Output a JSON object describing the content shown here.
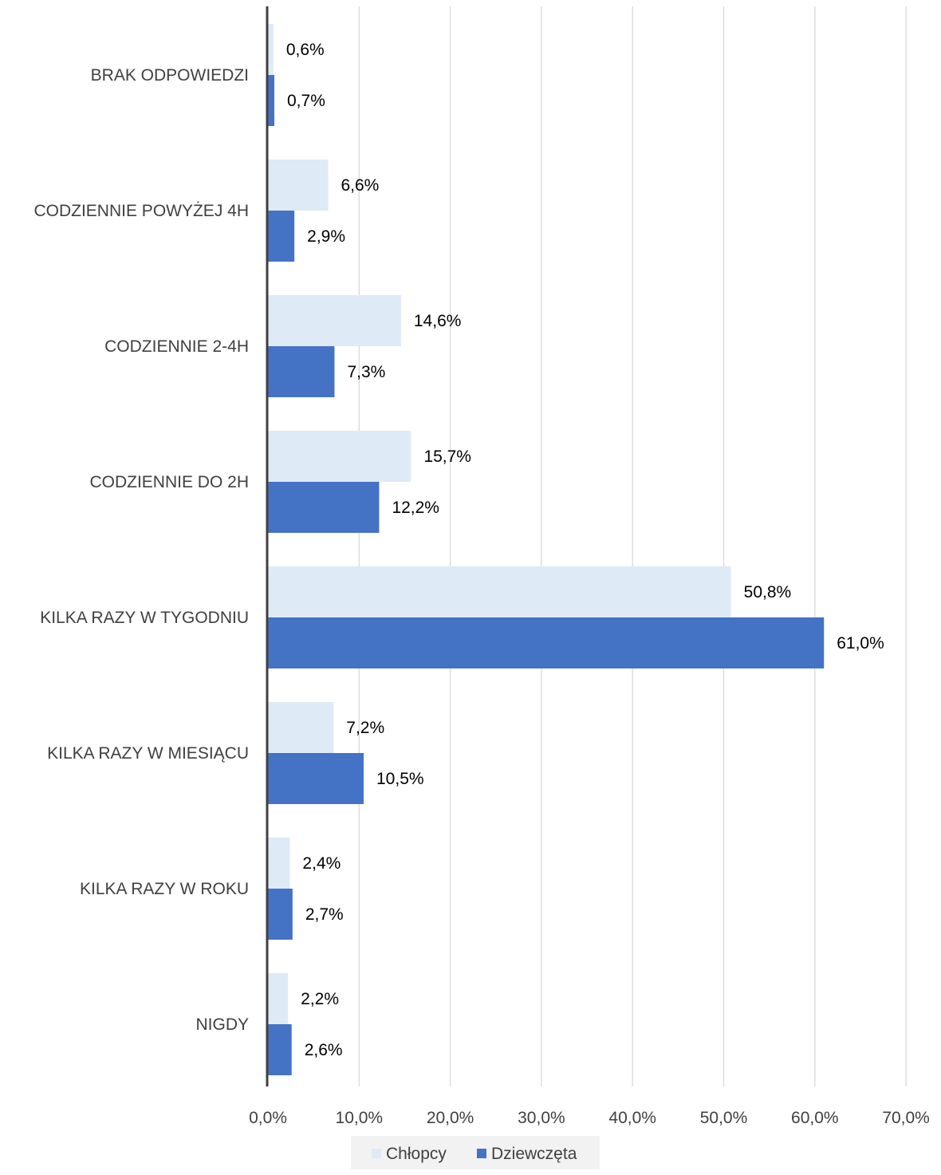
{
  "chart_data": {
    "type": "bar",
    "orientation": "horizontal",
    "categories": [
      "BRAK ODPOWIEDZI",
      "CODZIENNIE POWYŻEJ 4H",
      "CODZIENNIE 2-4H",
      "CODZIENNIE DO 2H",
      "KILKA RAZY W TYGODNIU",
      "KILKA RAZY W MIESIĄCU",
      "KILKA RAZY W ROKU",
      "NIGDY"
    ],
    "series": [
      {
        "name": "Chłopcy",
        "color": "#DEEAF6",
        "values": [
          0.6,
          6.6,
          14.6,
          15.7,
          50.8,
          7.2,
          2.4,
          2.2
        ],
        "labels": [
          "0,6%",
          "6,6%",
          "14,6%",
          "15,7%",
          "50,8%",
          "7,2%",
          "2,4%",
          "2,2%"
        ]
      },
      {
        "name": "Dziewczęta",
        "color": "#4472C4",
        "values": [
          0.7,
          2.9,
          7.3,
          12.2,
          61.0,
          10.5,
          2.7,
          2.6
        ],
        "labels": [
          "0,7%",
          "2,9%",
          "7,3%",
          "12,2%",
          "61,0%",
          "10,5%",
          "2,7%",
          "2,6%"
        ]
      }
    ],
    "xlim": [
      0,
      70
    ],
    "xticks": [
      0,
      10,
      20,
      30,
      40,
      50,
      60,
      70
    ],
    "xtick_labels": [
      "0,0%",
      "10,0%",
      "20,0%",
      "30,0%",
      "40,0%",
      "50,0%",
      "60,0%",
      "70,0%"
    ],
    "title": "",
    "xlabel": "",
    "ylabel": "",
    "grid": true,
    "legend_position": "bottom"
  },
  "colors": {
    "gridline": "#D9D9D9",
    "axis": "#404040",
    "text": "#404040",
    "label_text": "#000000",
    "legend_background": "#F2F2F2"
  }
}
